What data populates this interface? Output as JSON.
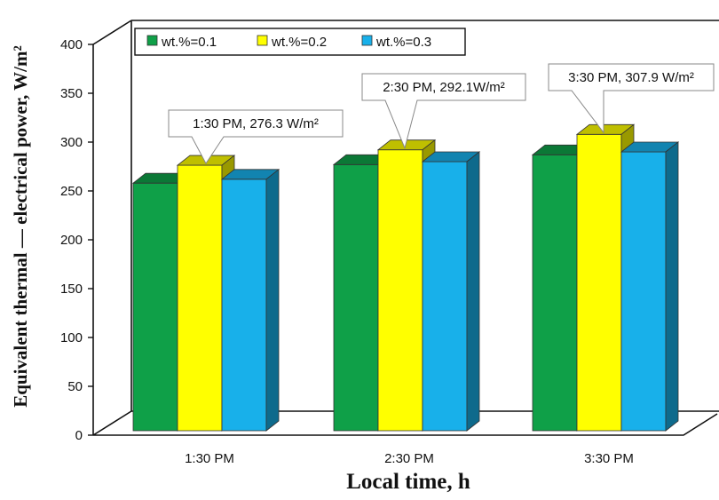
{
  "chart_data": {
    "type": "bar",
    "title": "",
    "xlabel": "Local time, h",
    "ylabel": "Equivalent thermal — electrical power, W/m²",
    "ylim": [
      0,
      400
    ],
    "yticks": [
      "0",
      "50",
      "100",
      "150",
      "200",
      "250",
      "300",
      "350",
      "400"
    ],
    "categories": [
      "1:30 PM",
      "2:30 PM",
      "3:30 PM"
    ],
    "series": [
      {
        "name": "wt.%=0.1",
        "color": "#0fa048",
        "values": [
          258,
          277,
          287
        ]
      },
      {
        "name": "wt.%=0.2",
        "color": "#ffff00",
        "values": [
          276.3,
          292.1,
          307.9
        ]
      },
      {
        "name": "wt.%=0.3",
        "color": "#18b0ea",
        "values": [
          262,
          280,
          290
        ]
      }
    ],
    "annotations": [
      {
        "label": "1:30 PM, 276.3 W/m²",
        "category_index": 0
      },
      {
        "label": "2:30 PM, 292.1W/m²",
        "category_index": 1
      },
      {
        "label": "3:30 PM, 307.9 W/m²",
        "category_index": 2
      }
    ],
    "legend_position": "top-left",
    "grid": false,
    "style": "3d-clustered-bar"
  }
}
